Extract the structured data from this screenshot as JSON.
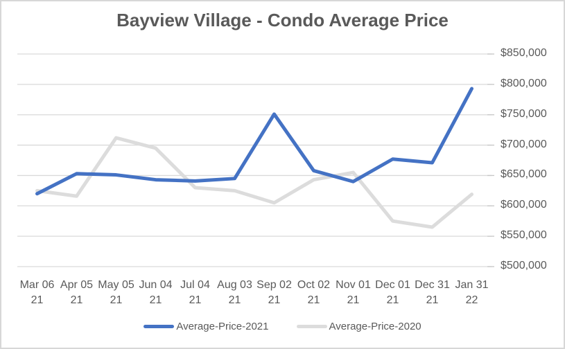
{
  "colors": {
    "series_2021": "#4472c4",
    "series_2020": "#dcdcdc",
    "gridline": "#d9d9d9",
    "tick": "#c6c6c6",
    "text": "#595959",
    "title_text": "#595959",
    "border": "#d7d7d7",
    "background": "#ffffff"
  },
  "chart_data": {
    "type": "line",
    "title": "Bayview Village - Condo Average Price",
    "categories": [
      "Mar 06 21",
      "Apr 05 21",
      "May 05 21",
      "Jun 04 21",
      "Jul 04 21",
      "Aug 03 21",
      "Sep 02 21",
      "Oct 02 21",
      "Nov 01 21",
      "Dec 01 21",
      "Dec 31 21",
      "Jan 31 22"
    ],
    "x_tick_lines": [
      [
        "Mar 06",
        "21"
      ],
      [
        "Apr 05",
        "21"
      ],
      [
        "May 05",
        "21"
      ],
      [
        "Jun 04",
        "21"
      ],
      [
        "Jul 04",
        "21"
      ],
      [
        "Aug 03",
        "21"
      ],
      [
        "Sep 02",
        "21"
      ],
      [
        "Oct 02",
        "21"
      ],
      [
        "Nov 01",
        "21"
      ],
      [
        "Dec 01",
        "21"
      ],
      [
        "Dec 31",
        "21"
      ],
      [
        "Jan 31",
        "22"
      ]
    ],
    "series": [
      {
        "name": "Average-Price-2021",
        "color_key": "series_2021",
        "values": [
          620000,
          653000,
          651000,
          643000,
          641000,
          645000,
          751000,
          658000,
          640000,
          677000,
          671000,
          793000
        ]
      },
      {
        "name": "Average-Price-2020",
        "color_key": "series_2020",
        "values": [
          625000,
          616000,
          712000,
          695000,
          630000,
          625000,
          605000,
          643000,
          655000,
          575000,
          565000,
          619000
        ]
      }
    ],
    "y_axis": {
      "min": 500000,
      "max": 850000,
      "step": 50000,
      "side": "right",
      "tick_labels": [
        "$850,000",
        "$800,000",
        "$750,000",
        "$700,000",
        "$650,000",
        "$600,000",
        "$550,000",
        "$500,000"
      ]
    },
    "xlabel": "",
    "ylabel": "",
    "grid": true,
    "legend_position": "bottom"
  }
}
